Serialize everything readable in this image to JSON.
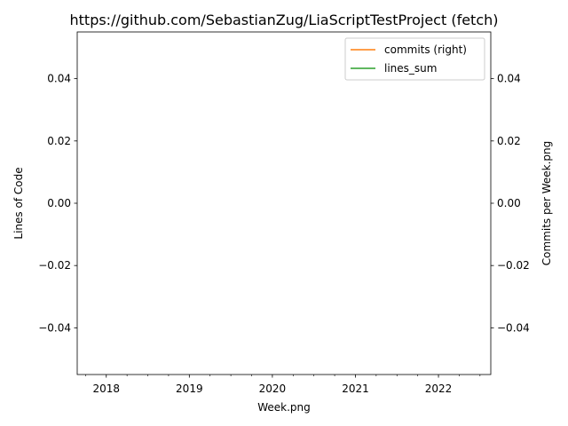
{
  "chart_data": {
    "type": "line",
    "title": "https://github.com/SebastianZug/LiaScriptTestProject (fetch)",
    "xlabel": "Week.png",
    "ylabel_left": "Lines of Code",
    "ylabel_right": "Commits per Week.png",
    "x_tick_labels": [
      "2018",
      "2019",
      "2020",
      "2021",
      "2022"
    ],
    "y_tick_labels_left": [
      "0.04",
      "0.02",
      "0.00",
      "−0.02",
      "−0.04"
    ],
    "y_tick_labels_right": [
      "0.04",
      "0.02",
      "0.00",
      "−0.02",
      "−0.04"
    ],
    "y_ticks": [
      0.04,
      0.02,
      0.0,
      -0.02,
      -0.04
    ],
    "ylim": [
      -0.055,
      0.055
    ],
    "grid": false,
    "legend_position": "upper right",
    "series": [
      {
        "name": "commits (right)",
        "color": "#ff7f0e",
        "axis": "right",
        "values": []
      },
      {
        "name": "lines_sum",
        "color": "#2ca02c",
        "axis": "left",
        "values": []
      }
    ]
  }
}
